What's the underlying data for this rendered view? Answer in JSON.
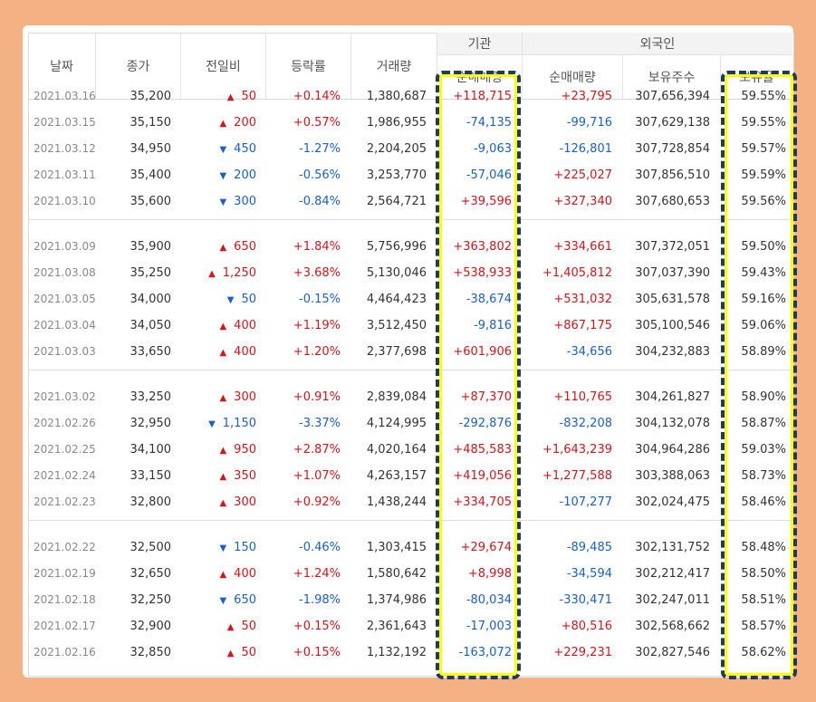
{
  "headers": {
    "date": "날짜",
    "close": "종가",
    "change": "전일비",
    "rate": "등락률",
    "volume": "거래량",
    "inst_group": "기관",
    "inst_net": "순매매량",
    "foreign_group": "외국인",
    "foreign_net": "순매매량",
    "foreign_hold": "보유주수",
    "foreign_ratio": "보유율"
  },
  "colors": {
    "up": "#d5141b",
    "down": "#1a5fc9",
    "highlight": "#ffff00",
    "highlight_border": "#1f3a60",
    "page_bg": "#f4b183"
  },
  "groups": [
    [
      {
        "date": "2021.03.16",
        "close": "35,200",
        "dir": "up",
        "change": "50",
        "rate": "+0.14%",
        "volume": "1,380,687",
        "inst": "+118,715",
        "foreign": "+23,795",
        "hold": "307,656,394",
        "ratio": "59.55%"
      },
      {
        "date": "2021.03.15",
        "close": "35,150",
        "dir": "up",
        "change": "200",
        "rate": "+0.57%",
        "volume": "1,986,955",
        "inst": "-74,135",
        "foreign": "-99,716",
        "hold": "307,629,138",
        "ratio": "59.55%"
      },
      {
        "date": "2021.03.12",
        "close": "34,950",
        "dir": "down",
        "change": "450",
        "rate": "-1.27%",
        "volume": "2,204,205",
        "inst": "-9,063",
        "foreign": "-126,801",
        "hold": "307,728,854",
        "ratio": "59.57%"
      },
      {
        "date": "2021.03.11",
        "close": "35,400",
        "dir": "down",
        "change": "200",
        "rate": "-0.56%",
        "volume": "3,253,770",
        "inst": "-57,046",
        "foreign": "+225,027",
        "hold": "307,856,510",
        "ratio": "59.59%"
      },
      {
        "date": "2021.03.10",
        "close": "35,600",
        "dir": "down",
        "change": "300",
        "rate": "-0.84%",
        "volume": "2,564,721",
        "inst": "+39,596",
        "foreign": "+327,340",
        "hold": "307,680,653",
        "ratio": "59.56%"
      }
    ],
    [
      {
        "date": "2021.03.09",
        "close": "35,900",
        "dir": "up",
        "change": "650",
        "rate": "+1.84%",
        "volume": "5,756,996",
        "inst": "+363,802",
        "foreign": "+334,661",
        "hold": "307,372,051",
        "ratio": "59.50%"
      },
      {
        "date": "2021.03.08",
        "close": "35,250",
        "dir": "up",
        "change": "1,250",
        "rate": "+3.68%",
        "volume": "5,130,046",
        "inst": "+538,933",
        "foreign": "+1,405,812",
        "hold": "307,037,390",
        "ratio": "59.43%"
      },
      {
        "date": "2021.03.05",
        "close": "34,000",
        "dir": "down",
        "change": "50",
        "rate": "-0.15%",
        "volume": "4,464,423",
        "inst": "-38,674",
        "foreign": "+531,032",
        "hold": "305,631,578",
        "ratio": "59.16%"
      },
      {
        "date": "2021.03.04",
        "close": "34,050",
        "dir": "up",
        "change": "400",
        "rate": "+1.19%",
        "volume": "3,512,450",
        "inst": "-9,816",
        "foreign": "+867,175",
        "hold": "305,100,546",
        "ratio": "59.06%"
      },
      {
        "date": "2021.03.03",
        "close": "33,650",
        "dir": "up",
        "change": "400",
        "rate": "+1.20%",
        "volume": "2,377,698",
        "inst": "+601,906",
        "foreign": "-34,656",
        "hold": "304,232,883",
        "ratio": "58.89%"
      }
    ],
    [
      {
        "date": "2021.03.02",
        "close": "33,250",
        "dir": "up",
        "change": "300",
        "rate": "+0.91%",
        "volume": "2,839,084",
        "inst": "+87,370",
        "foreign": "+110,765",
        "hold": "304,261,827",
        "ratio": "58.90%"
      },
      {
        "date": "2021.02.26",
        "close": "32,950",
        "dir": "down",
        "change": "1,150",
        "rate": "-3.37%",
        "volume": "4,124,995",
        "inst": "-292,876",
        "foreign": "-832,208",
        "hold": "304,132,078",
        "ratio": "58.87%"
      },
      {
        "date": "2021.02.25",
        "close": "34,100",
        "dir": "up",
        "change": "950",
        "rate": "+2.87%",
        "volume": "4,020,164",
        "inst": "+485,583",
        "foreign": "+1,643,239",
        "hold": "304,964,286",
        "ratio": "59.03%"
      },
      {
        "date": "2021.02.24",
        "close": "33,150",
        "dir": "up",
        "change": "350",
        "rate": "+1.07%",
        "volume": "4,263,157",
        "inst": "+419,056",
        "foreign": "+1,277,588",
        "hold": "303,388,063",
        "ratio": "58.73%"
      },
      {
        "date": "2021.02.23",
        "close": "32,800",
        "dir": "up",
        "change": "300",
        "rate": "+0.92%",
        "volume": "1,438,244",
        "inst": "+334,705",
        "foreign": "-107,277",
        "hold": "302,024,475",
        "ratio": "58.46%"
      }
    ],
    [
      {
        "date": "2021.02.22",
        "close": "32,500",
        "dir": "down",
        "change": "150",
        "rate": "-0.46%",
        "volume": "1,303,415",
        "inst": "+29,674",
        "foreign": "-89,485",
        "hold": "302,131,752",
        "ratio": "58.48%"
      },
      {
        "date": "2021.02.19",
        "close": "32,650",
        "dir": "up",
        "change": "400",
        "rate": "+1.24%",
        "volume": "1,580,642",
        "inst": "+8,998",
        "foreign": "-34,594",
        "hold": "302,212,417",
        "ratio": "58.50%"
      },
      {
        "date": "2021.02.18",
        "close": "32,250",
        "dir": "down",
        "change": "650",
        "rate": "-1.98%",
        "volume": "1,374,986",
        "inst": "-80,034",
        "foreign": "-330,471",
        "hold": "302,247,011",
        "ratio": "58.51%"
      },
      {
        "date": "2021.02.17",
        "close": "32,900",
        "dir": "up",
        "change": "50",
        "rate": "+0.15%",
        "volume": "2,361,643",
        "inst": "-17,003",
        "foreign": "+80,516",
        "hold": "302,568,662",
        "ratio": "58.57%"
      },
      {
        "date": "2021.02.16",
        "close": "32,850",
        "dir": "up",
        "change": "50",
        "rate": "+0.15%",
        "volume": "1,132,192",
        "inst": "-163,072",
        "foreign": "+229,231",
        "hold": "302,827,546",
        "ratio": "58.62%"
      }
    ]
  ]
}
